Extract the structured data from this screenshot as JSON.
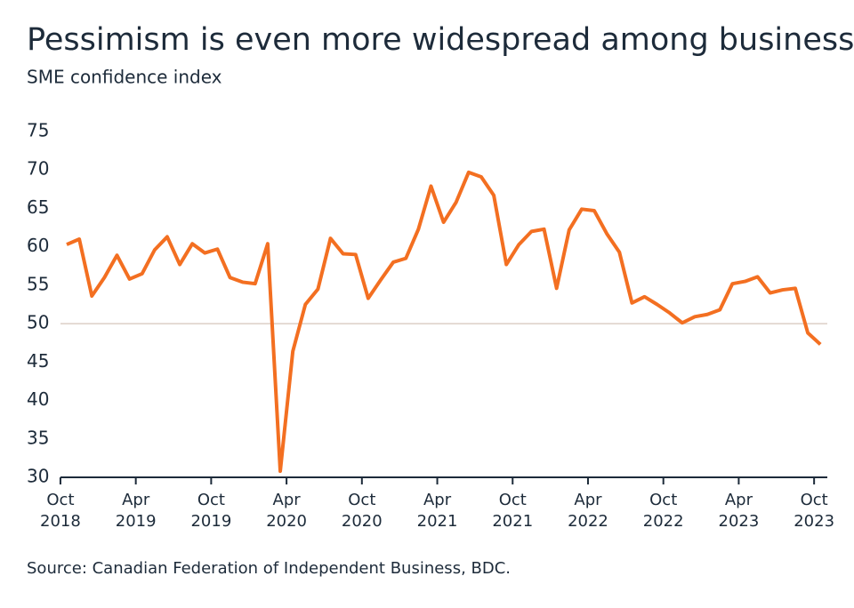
{
  "chart_data": {
    "type": "line",
    "title": "Pessimism is even more widespread among businesses",
    "subtitle": "SME confidence index",
    "source": "Source: Canadian Federation of Independent Business, BDC.",
    "categories": [
      "Oct 2018",
      null,
      null,
      null,
      null,
      null,
      "Apr 2019",
      null,
      null,
      null,
      null,
      null,
      "Oct 2019",
      null,
      null,
      null,
      null,
      null,
      "Apr 2020",
      null,
      null,
      null,
      null,
      null,
      "Oct 2020",
      null,
      null,
      null,
      null,
      null,
      "Apr 2021",
      null,
      null,
      null,
      null,
      null,
      "Oct 2021",
      null,
      null,
      null,
      null,
      null,
      "Apr 2022",
      null,
      null,
      null,
      null,
      null,
      "Oct 2022",
      null,
      null,
      null,
      null,
      null,
      "Apr 2023",
      null,
      null,
      null,
      null,
      null,
      "Oct 2023"
    ],
    "series": [
      {
        "name": "SME confidence index",
        "color": "#f36f21",
        "values": [
          60.3,
          61,
          53.6,
          56,
          58.9,
          55.8,
          56.5,
          59.6,
          61.3,
          57.7,
          60.4,
          59.2,
          59.7,
          56,
          55.4,
          55.2,
          60.4,
          30.8,
          46.4,
          52.5,
          54.5,
          61.1,
          59.1,
          59,
          53.3,
          55.7,
          58,
          58.5,
          62.3,
          67.9,
          63.2,
          65.8,
          69.7,
          69.1,
          66.7,
          57.7,
          60.3,
          62,
          62.3,
          54.6,
          62.2,
          64.9,
          64.7,
          61.7,
          59.3,
          52.7,
          53.5,
          52.5,
          51.4,
          50.1,
          50.9,
          51.2,
          51.8,
          55.2,
          55.5,
          56.1,
          54,
          54.4,
          54.6,
          48.8,
          47.3
        ]
      }
    ],
    "ylim": [
      30,
      75
    ],
    "yticks": [
      30,
      35,
      40,
      45,
      50,
      55,
      60,
      65,
      70,
      75
    ],
    "reference_line": 50,
    "grid": false
  }
}
